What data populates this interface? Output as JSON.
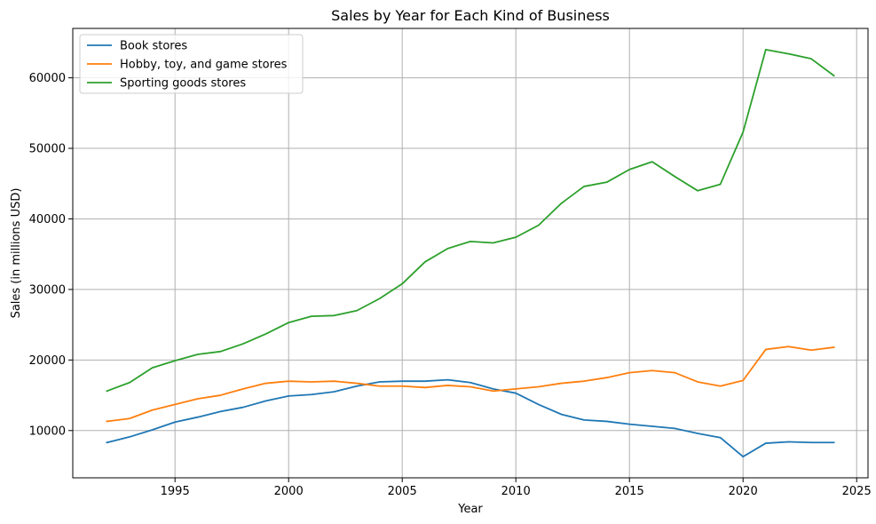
{
  "chart_data": {
    "type": "line",
    "title": "Sales by Year for Each Kind of Business",
    "xlabel": "Year",
    "ylabel": "Sales (in millions USD)",
    "xlim": [
      1990.5,
      2025.5
    ],
    "ylim": [
      3300,
      67000
    ],
    "x_ticks": [
      1995,
      2000,
      2005,
      2010,
      2015,
      2020,
      2025
    ],
    "y_ticks": [
      10000,
      20000,
      30000,
      40000,
      50000,
      60000
    ],
    "grid": true,
    "legend_position": "top-left",
    "x": [
      1992,
      1993,
      1994,
      1995,
      1996,
      1997,
      1998,
      1999,
      2000,
      2001,
      2002,
      2003,
      2004,
      2005,
      2006,
      2007,
      2008,
      2009,
      2010,
      2011,
      2012,
      2013,
      2014,
      2015,
      2016,
      2017,
      2018,
      2019,
      2020,
      2021,
      2022,
      2023,
      2024
    ],
    "series": [
      {
        "name": "Book stores",
        "color": "#1f77b4",
        "values": [
          8300,
          9100,
          10100,
          11200,
          11900,
          12700,
          13300,
          14200,
          14900,
          15100,
          15500,
          16300,
          16900,
          17000,
          17000,
          17200,
          16800,
          15900,
          15300,
          13700,
          12300,
          11500,
          11300,
          10900,
          10600,
          10300,
          9600,
          9000,
          6300,
          8200,
          8400,
          8300,
          8300
        ]
      },
      {
        "name": "Hobby, toy, and game stores",
        "color": "#ff7f0e",
        "values": [
          11300,
          11700,
          12900,
          13700,
          14500,
          15000,
          15900,
          16700,
          17000,
          16900,
          17000,
          16700,
          16300,
          16300,
          16100,
          16400,
          16200,
          15600,
          15900,
          16200,
          16700,
          17000,
          17500,
          18200,
          18500,
          18200,
          16900,
          16300,
          17100,
          21500,
          21900,
          21400,
          21800
        ]
      },
      {
        "name": "Sporting goods stores",
        "color": "#2ca02c",
        "values": [
          15600,
          16800,
          18900,
          19900,
          20800,
          21200,
          22300,
          23700,
          25300,
          26200,
          26300,
          27000,
          28700,
          30800,
          33900,
          35800,
          36800,
          36600,
          37400,
          39100,
          42200,
          44600,
          45200,
          47000,
          48100,
          46000,
          44000,
          44900,
          52300,
          64000,
          63400,
          62700,
          60300
        ]
      }
    ]
  }
}
